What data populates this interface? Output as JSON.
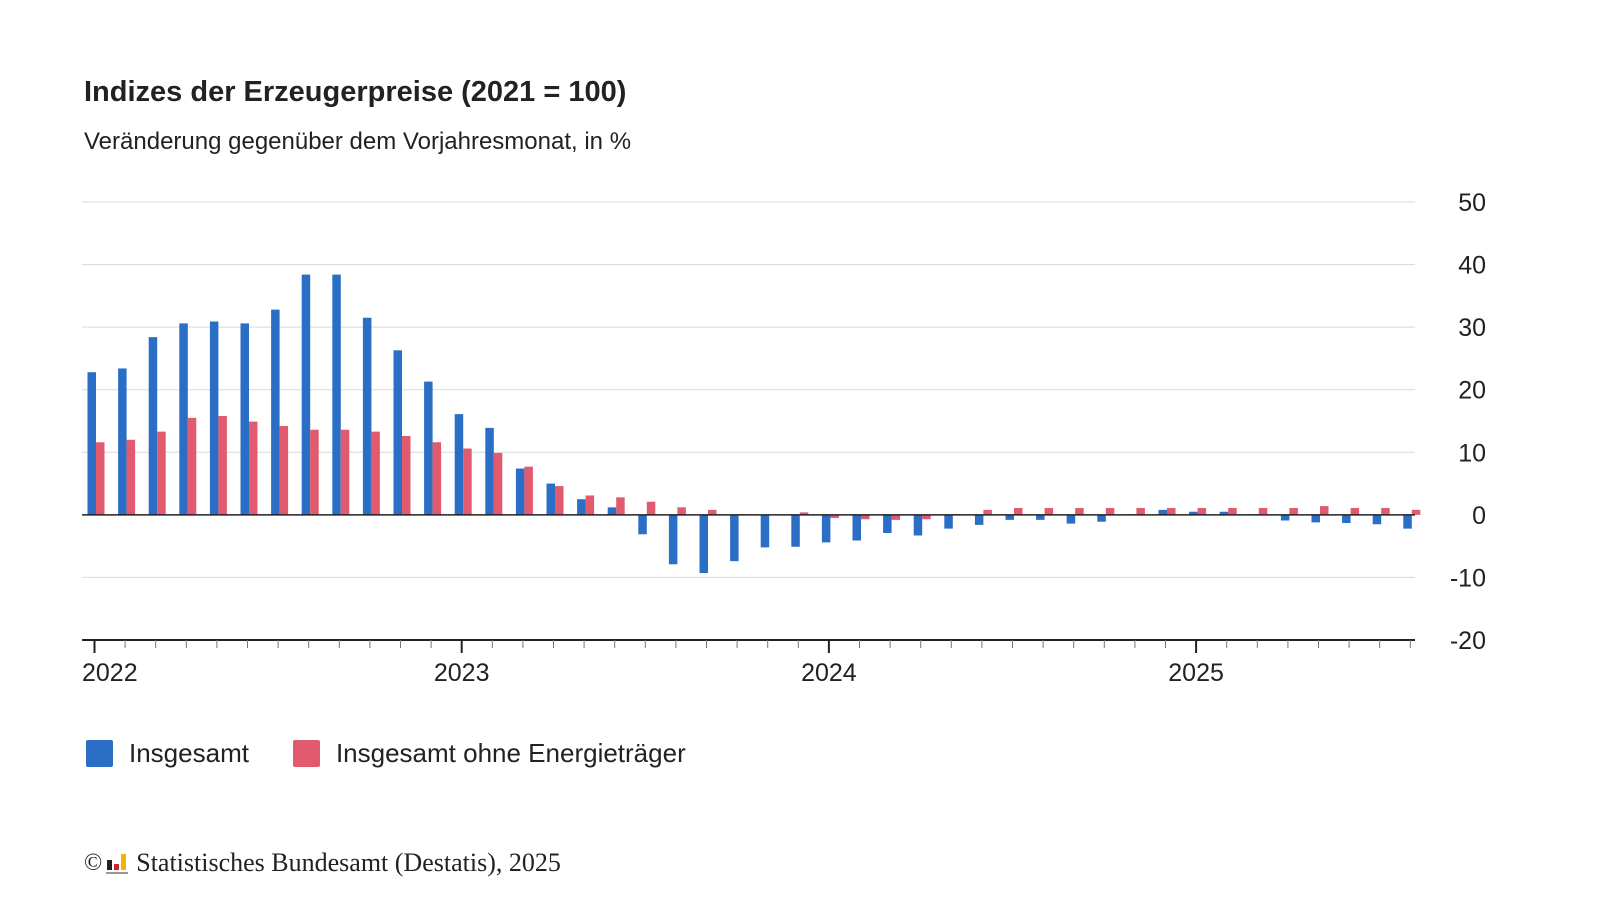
{
  "header": {
    "title": "Indizes der Erzeugerpreise (2021 = 100)",
    "subtitle": "Veränderung gegenüber dem Vorjahresmonat, in %"
  },
  "legend": {
    "series1": "Insgesamt",
    "series2": "Insgesamt ohne Energieträger"
  },
  "footer": {
    "copyright_symbol": "©",
    "text": "Statistisches Bundesamt (Destatis), 2025"
  },
  "chart_data": {
    "type": "bar",
    "title": "Indizes der Erzeugerpreise (2021 = 100)",
    "subtitle": "Veränderung gegenüber dem Vorjahresmonat, in %",
    "xlabel": "",
    "ylabel": "",
    "ylim": [
      -20,
      50
    ],
    "y_ticks": [
      50,
      40,
      30,
      20,
      10,
      0,
      -10,
      -20
    ],
    "y_axis_position": "right",
    "grid": true,
    "legend_position": "bottom-left",
    "x_year_labels": [
      "2022",
      "2023",
      "2024",
      "2025"
    ],
    "categories": [
      "2022-01",
      "2022-02",
      "2022-03",
      "2022-04",
      "2022-05",
      "2022-06",
      "2022-07",
      "2022-08",
      "2022-09",
      "2022-10",
      "2022-11",
      "2022-12",
      "2023-01",
      "2023-02",
      "2023-03",
      "2023-04",
      "2023-05",
      "2023-06",
      "2023-07",
      "2023-08",
      "2023-09",
      "2023-10",
      "2023-11",
      "2023-12",
      "2024-01",
      "2024-02",
      "2024-03",
      "2024-04",
      "2024-05",
      "2024-06",
      "2024-07",
      "2024-08",
      "2024-09",
      "2024-10",
      "2024-11",
      "2024-12",
      "2025-01",
      "2025-02",
      "2025-03",
      "2025-04",
      "2025-05",
      "2025-06",
      "2025-07",
      "2025-08"
    ],
    "series": [
      {
        "name": "Insgesamt",
        "color": "#2a6ec6",
        "values": [
          22.8,
          23.4,
          28.4,
          30.6,
          30.9,
          30.6,
          32.8,
          38.4,
          38.4,
          31.5,
          26.3,
          21.3,
          16.1,
          13.9,
          7.4,
          5.0,
          2.5,
          1.2,
          -3.1,
          -7.9,
          -9.3,
          -7.4,
          -5.2,
          -5.1,
          -4.4,
          -4.1,
          -2.9,
          -3.3,
          -2.2,
          -1.6,
          -0.8,
          -0.8,
          -1.4,
          -1.1,
          0.1,
          0.8,
          0.5,
          0.5,
          0.1,
          -0.9,
          -1.2,
          -1.3,
          -1.5,
          -2.2
        ]
      },
      {
        "name": "Insgesamt ohne Energieträger",
        "color": "#e15a6e",
        "values": [
          11.6,
          12.0,
          13.3,
          15.5,
          15.8,
          14.9,
          14.2,
          13.6,
          13.6,
          13.3,
          12.6,
          11.6,
          10.6,
          9.9,
          7.7,
          4.6,
          3.1,
          2.8,
          2.1,
          1.2,
          0.8,
          0.1,
          0.0,
          0.4,
          -0.5,
          -0.7,
          -0.8,
          -0.7,
          0.1,
          0.8,
          1.1,
          1.1,
          1.1,
          1.1,
          1.1,
          1.1,
          1.1,
          1.1,
          1.1,
          1.1,
          1.4,
          1.1,
          1.1,
          0.8
        ]
      }
    ]
  }
}
